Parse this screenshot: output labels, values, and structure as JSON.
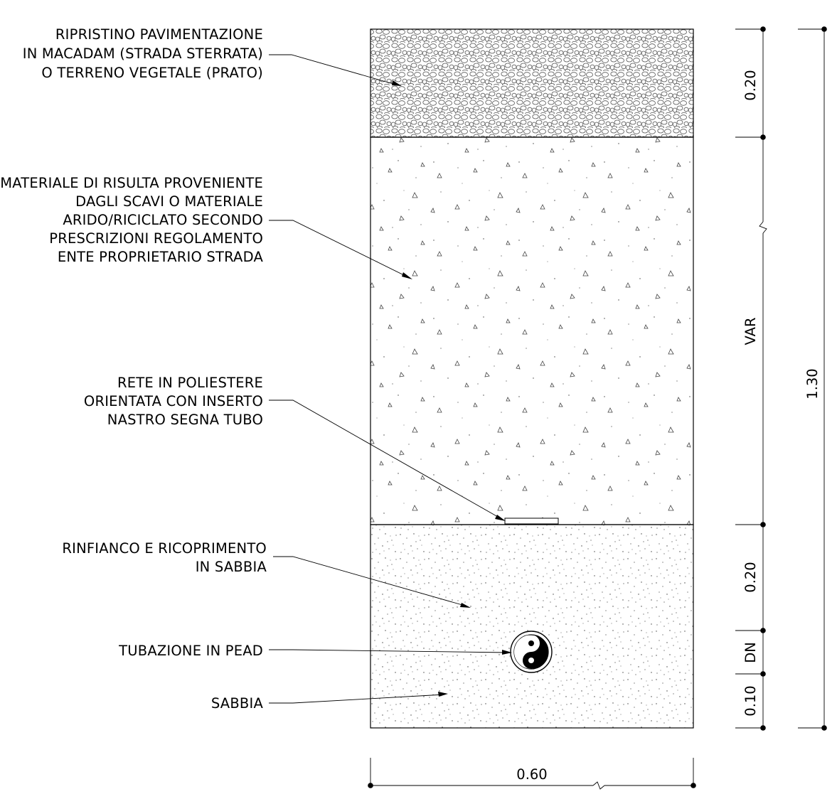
{
  "labels": {
    "macadam": [
      "RIPRISTINO PAVIMENTAZIONE",
      "IN MACADAM (STRADA STERRATA)",
      "O TERRENO VEGETALE (PRATO)"
    ],
    "backfill": [
      "MATERIALE DI RISULTA PROVENIENTE",
      "DAGLI SCAVI O MATERIALE",
      "ARIDO/RICICLATO SECONDO",
      "PRESCRIZIONI REGOLAMENTO",
      "ENTE PROPRIETARIO STRADA"
    ],
    "mesh": [
      "RETE IN POLIESTERE",
      "ORIENTATA CON INSERTO",
      "NASTRO SEGNA TUBO"
    ],
    "covering": [
      "RINFIANCO E RICOPRIMENTO",
      "IN SABBIA"
    ],
    "pipe": [
      "TUBAZIONE IN PEAD"
    ],
    "sand": [
      "SABBIA"
    ]
  },
  "dimensions": {
    "top_layer": "0.20",
    "variable": "VAR",
    "sand_cover": "0.20",
    "pipe_dn": "DN",
    "bedding": "0.10",
    "total_depth": "1.30",
    "width": "0.60"
  }
}
